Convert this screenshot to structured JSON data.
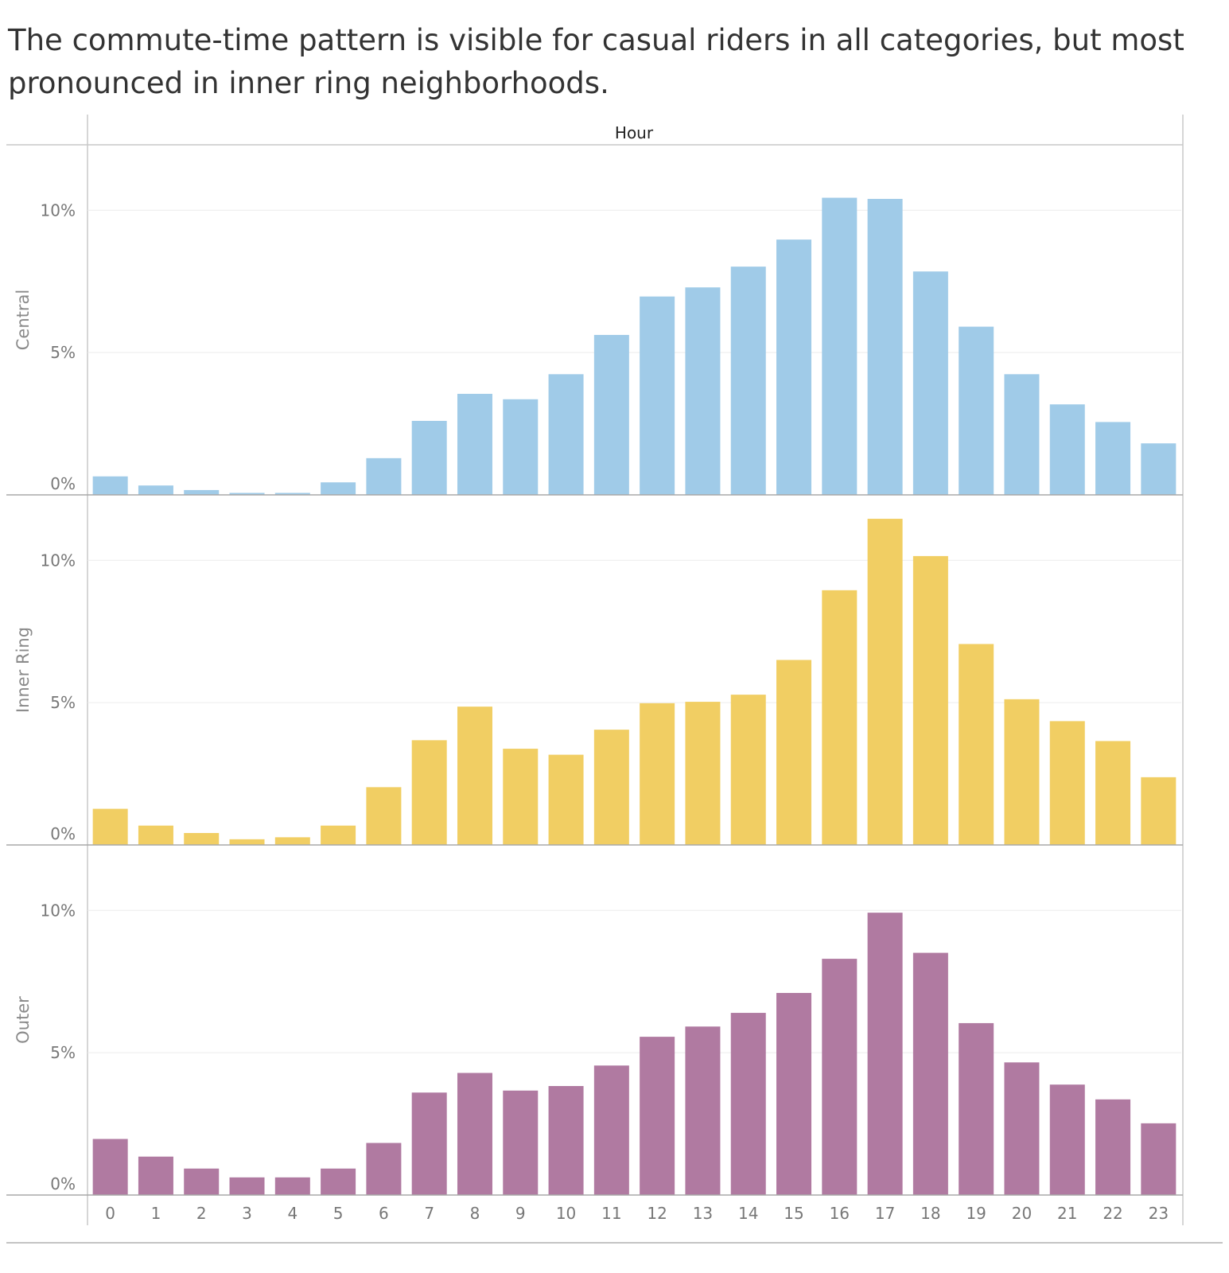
{
  "title": "The commute-time pattern is visible for casual riders in all categories, but most pronounced in inner ring neighborhoods.",
  "chart_data": {
    "type": "bar",
    "column_header": "Hour",
    "categories": [
      "0",
      "1",
      "2",
      "3",
      "4",
      "5",
      "6",
      "7",
      "8",
      "9",
      "10",
      "11",
      "12",
      "13",
      "14",
      "15",
      "16",
      "17",
      "18",
      "19",
      "20",
      "21",
      "22",
      "23"
    ],
    "y_ticks": [
      {
        "value": 0,
        "label": "0%"
      },
      {
        "value": 5,
        "label": "5%"
      },
      {
        "value": 10,
        "label": "10%"
      }
    ],
    "ylim": [
      0,
      12.3
    ],
    "grid": true,
    "panels": [
      {
        "row_label": "Central",
        "color": "#a0cbe8",
        "values": [
          0.65,
          0.33,
          0.17,
          0.07,
          0.07,
          0.44,
          1.29,
          2.6,
          3.55,
          3.36,
          4.24,
          5.62,
          6.97,
          7.29,
          8.02,
          8.97,
          10.44,
          10.4,
          7.85,
          5.91,
          4.24,
          3.18,
          2.56,
          1.81
        ]
      },
      {
        "row_label": "Inner Ring",
        "color": "#f1ce63",
        "values": [
          1.27,
          0.68,
          0.42,
          0.2,
          0.27,
          0.68,
          2.03,
          3.68,
          4.86,
          3.38,
          3.17,
          4.05,
          4.98,
          5.03,
          5.28,
          6.5,
          8.95,
          11.46,
          10.15,
          7.06,
          5.12,
          4.35,
          3.65,
          2.38
        ]
      },
      {
        "row_label": "Outer",
        "color": "#b07aa1",
        "values": [
          1.97,
          1.35,
          0.93,
          0.62,
          0.62,
          0.93,
          1.83,
          3.6,
          4.29,
          3.67,
          3.83,
          4.55,
          5.56,
          5.92,
          6.4,
          7.1,
          8.3,
          9.92,
          8.51,
          6.04,
          4.66,
          3.88,
          3.36,
          2.52
        ]
      }
    ]
  }
}
